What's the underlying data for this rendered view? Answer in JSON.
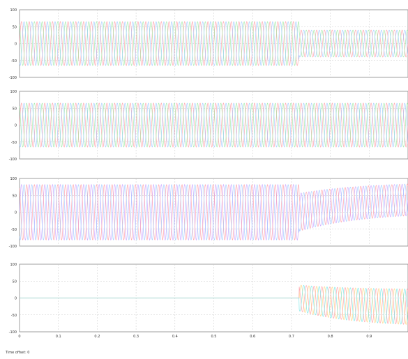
{
  "scope": {
    "footer_text": "Time offset: 0",
    "colors": {
      "phase_a": "#ff9aa3",
      "phase_b": "#9be7a0",
      "phase_c": "#9cc9ff",
      "trace_d": "#c8a0ff",
      "trace_e": "#ffd27a",
      "trace_f": "#6ee6e6",
      "grid": "#c8c8c8",
      "axis": "#888888",
      "text": "#333333"
    }
  },
  "chart_data": [
    {
      "type": "line",
      "xlim": [
        0,
        1.0
      ],
      "ylim": [
        -100,
        100
      ],
      "yticks": [
        "100",
        "50",
        "0",
        "-50",
        "-100"
      ],
      "series": [
        {
          "color_key": "phase_a",
          "pre_amplitude": 65,
          "post_amplitude": 40,
          "switch_time": 0.72,
          "frequency": 50,
          "phase": 0,
          "decay": 0
        },
        {
          "color_key": "phase_b",
          "pre_amplitude": 65,
          "post_amplitude": 40,
          "switch_time": 0.72,
          "frequency": 50,
          "phase": 2.094,
          "decay": 0
        },
        {
          "color_key": "phase_c",
          "pre_amplitude": 65,
          "post_amplitude": 40,
          "switch_time": 0.72,
          "frequency": 50,
          "phase": 4.189,
          "decay": 0
        }
      ]
    },
    {
      "type": "line",
      "xlim": [
        0,
        1.0
      ],
      "ylim": [
        -100,
        100
      ],
      "yticks": [
        "100",
        "50",
        "0",
        "-50",
        "-100"
      ],
      "series": [
        {
          "color_key": "phase_a",
          "pre_amplitude": 65,
          "post_amplitude": 65,
          "switch_time": 0.72,
          "frequency": 50,
          "phase": 0,
          "decay": 0
        },
        {
          "color_key": "phase_b",
          "pre_amplitude": 65,
          "post_amplitude": 65,
          "switch_time": 0.72,
          "frequency": 50,
          "phase": 2.094,
          "decay": 0
        },
        {
          "color_key": "phase_c",
          "pre_amplitude": 65,
          "post_amplitude": 65,
          "switch_time": 0.72,
          "frequency": 50,
          "phase": 4.189,
          "decay": 0
        }
      ]
    },
    {
      "type": "line",
      "xlim": [
        0,
        1.0
      ],
      "ylim": [
        -100,
        100
      ],
      "yticks": [
        "100",
        "50",
        "0",
        "-50",
        "-100"
      ],
      "series": [
        {
          "color_key": "trace_d",
          "pre_amplitude": 82,
          "post_amplitude": 45,
          "switch_time": 0.72,
          "frequency": 50,
          "phase": 0,
          "offset_after": 45,
          "decay": 6
        },
        {
          "color_key": "phase_a",
          "pre_amplitude": 82,
          "post_amplitude": 45,
          "switch_time": 0.72,
          "frequency": 50,
          "phase": 2.094,
          "offset_after": 45,
          "decay": 6
        },
        {
          "color_key": "phase_c",
          "pre_amplitude": 82,
          "post_amplitude": 45,
          "switch_time": 0.72,
          "frequency": 50,
          "phase": 4.189,
          "offset_after": 45,
          "decay": 6
        }
      ]
    },
    {
      "type": "line",
      "xlim": [
        0,
        1.0
      ],
      "ylim": [
        -100,
        100
      ],
      "yticks": [
        "100",
        "50",
        "0",
        "-50",
        "-100"
      ],
      "xticks": [
        "0",
        "0.1",
        "0.2",
        "0.3",
        "0.4",
        "0.5",
        "0.6",
        "0.7",
        "0.8",
        "0.9"
      ],
      "grid": true,
      "series": [
        {
          "color_key": "trace_e",
          "pre_amplitude": 0,
          "post_amplitude": 55,
          "switch_time": 0.72,
          "frequency": 50,
          "phase": 0,
          "offset_after": -30,
          "decay": 7
        },
        {
          "color_key": "phase_a",
          "pre_amplitude": 0,
          "post_amplitude": 55,
          "switch_time": 0.72,
          "frequency": 50,
          "phase": 2.094,
          "offset_after": -30,
          "decay": 7
        },
        {
          "color_key": "trace_f",
          "pre_amplitude": 0,
          "post_amplitude": 55,
          "switch_time": 0.72,
          "frequency": 50,
          "phase": 4.189,
          "offset_after": -30,
          "decay": 7
        }
      ]
    }
  ]
}
